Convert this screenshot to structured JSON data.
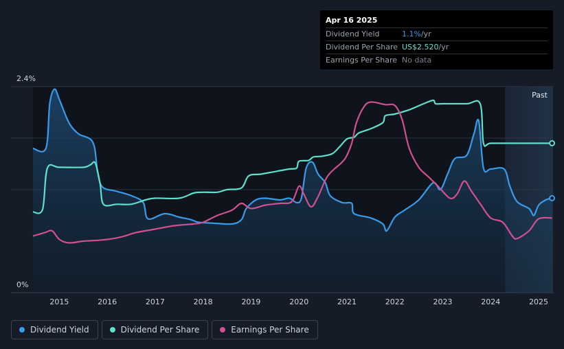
{
  "tooltip": {
    "date": "Apr 16 2025",
    "rows": [
      {
        "label": "Dividend Yield",
        "value": "1.1%",
        "unit": " /yr"
      },
      {
        "label": "Dividend Per Share",
        "value": "US$2.520",
        "unit": " /yr"
      },
      {
        "label": "Earnings Per Share",
        "value": "No data",
        "unit": ""
      }
    ]
  },
  "past_label": "Past",
  "legend": [
    {
      "label": "Dividend Yield",
      "color": "#3a9bea"
    },
    {
      "label": "Dividend Per Share",
      "color": "#5fe0cc"
    },
    {
      "label": "Earnings Per Share",
      "color": "#d1508f"
    }
  ],
  "chart_data": {
    "type": "line",
    "x_ticks": [
      "2015",
      "2016",
      "2017",
      "2018",
      "2019",
      "2020",
      "2021",
      "2022",
      "2023",
      "2024",
      "2025"
    ],
    "y_tick_labels": [
      "2.4%",
      "0%"
    ],
    "ylim": [
      0,
      2.4
    ],
    "xlim": [
      2014.45,
      2025.3
    ],
    "forecast_start": 2024.3,
    "series": [
      {
        "name": "Dividend Yield",
        "color": "#3a9bea",
        "fill": true,
        "points": [
          [
            2014.45,
            1.68
          ],
          [
            2014.72,
            1.68
          ],
          [
            2014.8,
            2.2
          ],
          [
            2014.9,
            2.37
          ],
          [
            2015.0,
            2.25
          ],
          [
            2015.2,
            1.98
          ],
          [
            2015.4,
            1.85
          ],
          [
            2015.7,
            1.75
          ],
          [
            2015.8,
            1.4
          ],
          [
            2015.9,
            1.23
          ],
          [
            2016.2,
            1.18
          ],
          [
            2016.5,
            1.13
          ],
          [
            2016.75,
            1.05
          ],
          [
            2016.85,
            0.86
          ],
          [
            2017.2,
            0.92
          ],
          [
            2017.5,
            0.88
          ],
          [
            2017.75,
            0.85
          ],
          [
            2017.9,
            0.82
          ],
          [
            2018.2,
            0.81
          ],
          [
            2018.6,
            0.8
          ],
          [
            2018.8,
            0.85
          ],
          [
            2018.9,
            0.98
          ],
          [
            2019.1,
            1.08
          ],
          [
            2019.3,
            1.1
          ],
          [
            2019.6,
            1.08
          ],
          [
            2019.8,
            1.1
          ],
          [
            2019.95,
            1.05
          ],
          [
            2020.05,
            1.1
          ],
          [
            2020.15,
            1.45
          ],
          [
            2020.28,
            1.52
          ],
          [
            2020.4,
            1.38
          ],
          [
            2020.55,
            1.28
          ],
          [
            2020.65,
            1.13
          ],
          [
            2020.9,
            1.05
          ],
          [
            2021.1,
            1.04
          ],
          [
            2021.15,
            0.92
          ],
          [
            2021.5,
            0.87
          ],
          [
            2021.75,
            0.8
          ],
          [
            2021.83,
            0.72
          ],
          [
            2022.0,
            0.88
          ],
          [
            2022.2,
            0.96
          ],
          [
            2022.5,
            1.08
          ],
          [
            2022.8,
            1.28
          ],
          [
            2022.95,
            1.2
          ],
          [
            2023.1,
            1.38
          ],
          [
            2023.25,
            1.56
          ],
          [
            2023.5,
            1.6
          ],
          [
            2023.65,
            1.85
          ],
          [
            2023.75,
            2.0
          ],
          [
            2023.85,
            1.45
          ],
          [
            2024.0,
            1.44
          ],
          [
            2024.28,
            1.44
          ],
          [
            2024.4,
            1.24
          ],
          [
            2024.55,
            1.06
          ],
          [
            2024.8,
            0.98
          ],
          [
            2024.9,
            0.9
          ],
          [
            2025.0,
            1.02
          ],
          [
            2025.15,
            1.08
          ],
          [
            2025.28,
            1.1
          ]
        ]
      },
      {
        "name": "Dividend Per Share",
        "color": "#5fe0cc",
        "fill": false,
        "points": [
          [
            2014.45,
            0.94
          ],
          [
            2014.65,
            0.97
          ],
          [
            2014.75,
            1.45
          ],
          [
            2015.0,
            1.46
          ],
          [
            2015.5,
            1.46
          ],
          [
            2015.65,
            1.49
          ],
          [
            2015.75,
            1.51
          ],
          [
            2015.85,
            1.27
          ],
          [
            2015.92,
            1.03
          ],
          [
            2016.2,
            1.03
          ],
          [
            2016.5,
            1.03
          ],
          [
            2016.8,
            1.08
          ],
          [
            2017.0,
            1.1
          ],
          [
            2017.5,
            1.1
          ],
          [
            2017.8,
            1.16
          ],
          [
            2018.0,
            1.17
          ],
          [
            2018.3,
            1.17
          ],
          [
            2018.5,
            1.2
          ],
          [
            2018.8,
            1.22
          ],
          [
            2018.95,
            1.36
          ],
          [
            2019.2,
            1.38
          ],
          [
            2019.5,
            1.41
          ],
          [
            2019.8,
            1.44
          ],
          [
            2019.95,
            1.45
          ],
          [
            2020.0,
            1.53
          ],
          [
            2020.2,
            1.54
          ],
          [
            2020.3,
            1.58
          ],
          [
            2020.5,
            1.59
          ],
          [
            2020.7,
            1.62
          ],
          [
            2020.85,
            1.7
          ],
          [
            2021.0,
            1.79
          ],
          [
            2021.15,
            1.81
          ],
          [
            2021.25,
            1.86
          ],
          [
            2021.5,
            1.91
          ],
          [
            2021.75,
            1.98
          ],
          [
            2021.8,
            2.06
          ],
          [
            2022.0,
            2.08
          ],
          [
            2022.3,
            2.13
          ],
          [
            2022.6,
            2.2
          ],
          [
            2022.8,
            2.24
          ],
          [
            2022.85,
            2.2
          ],
          [
            2023.0,
            2.2
          ],
          [
            2023.5,
            2.2
          ],
          [
            2023.78,
            2.2
          ],
          [
            2023.85,
            1.74
          ],
          [
            2024.0,
            1.74
          ],
          [
            2024.5,
            1.74
          ],
          [
            2025.28,
            1.74
          ]
        ]
      },
      {
        "name": "Earnings Per Share",
        "color": "#d1508f",
        "fill": false,
        "points": [
          [
            2014.45,
            0.66
          ],
          [
            2014.7,
            0.7
          ],
          [
            2014.85,
            0.72
          ],
          [
            2015.0,
            0.62
          ],
          [
            2015.2,
            0.58
          ],
          [
            2015.5,
            0.6
          ],
          [
            2015.8,
            0.61
          ],
          [
            2016.0,
            0.62
          ],
          [
            2016.3,
            0.65
          ],
          [
            2016.6,
            0.7
          ],
          [
            2017.0,
            0.74
          ],
          [
            2017.4,
            0.78
          ],
          [
            2017.8,
            0.8
          ],
          [
            2018.0,
            0.82
          ],
          [
            2018.3,
            0.9
          ],
          [
            2018.6,
            0.96
          ],
          [
            2018.8,
            1.04
          ],
          [
            2019.0,
            0.98
          ],
          [
            2019.3,
            1.02
          ],
          [
            2019.6,
            1.04
          ],
          [
            2019.85,
            1.06
          ],
          [
            2020.0,
            1.24
          ],
          [
            2020.1,
            1.15
          ],
          [
            2020.25,
            1.0
          ],
          [
            2020.4,
            1.12
          ],
          [
            2020.6,
            1.36
          ],
          [
            2020.9,
            1.52
          ],
          [
            2021.0,
            1.6
          ],
          [
            2021.1,
            1.74
          ],
          [
            2021.2,
            1.98
          ],
          [
            2021.35,
            2.16
          ],
          [
            2021.5,
            2.22
          ],
          [
            2021.8,
            2.19
          ],
          [
            2022.0,
            2.18
          ],
          [
            2022.15,
            2.02
          ],
          [
            2022.3,
            1.68
          ],
          [
            2022.5,
            1.46
          ],
          [
            2022.7,
            1.35
          ],
          [
            2022.9,
            1.24
          ],
          [
            2023.15,
            1.1
          ],
          [
            2023.3,
            1.15
          ],
          [
            2023.45,
            1.3
          ],
          [
            2023.6,
            1.18
          ],
          [
            2023.8,
            1.02
          ],
          [
            2024.0,
            0.87
          ],
          [
            2024.25,
            0.82
          ],
          [
            2024.45,
            0.66
          ],
          [
            2024.55,
            0.63
          ],
          [
            2024.8,
            0.72
          ],
          [
            2025.0,
            0.86
          ],
          [
            2025.28,
            0.87
          ]
        ]
      }
    ]
  }
}
